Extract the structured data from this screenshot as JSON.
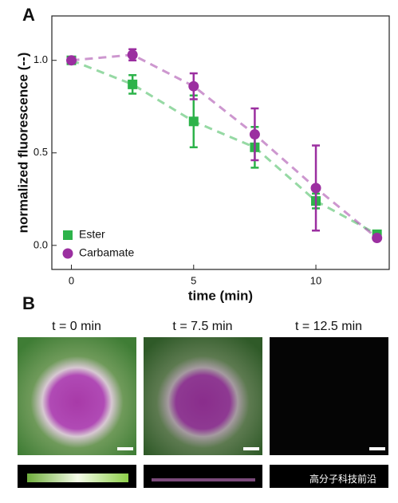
{
  "chart_data": {
    "type": "scatter",
    "panel_label": "A",
    "xlabel": "time (min)",
    "ylabel": "normalized fluorescence (--)",
    "x": [
      0,
      2.5,
      5,
      7.5,
      10,
      12.5
    ],
    "series": [
      {
        "name": "Ester",
        "color": "#2db34a",
        "marker": "square",
        "values": [
          1.0,
          0.87,
          0.67,
          0.53,
          0.24,
          0.06
        ],
        "errors": [
          0,
          0.05,
          0.14,
          0.11,
          0.04,
          0.01
        ]
      },
      {
        "name": "Carbamate",
        "color": "#9b2fa0",
        "marker": "circle",
        "values": [
          1.0,
          1.03,
          0.86,
          0.6,
          0.31,
          0.04
        ],
        "errors": [
          0,
          0.03,
          0.07,
          0.14,
          0.23,
          0.01
        ]
      }
    ],
    "xlim": [
      -0.8,
      13
    ],
    "ylim": [
      -0.13,
      1.24
    ],
    "xticks": [
      0,
      5,
      10
    ],
    "yticks": [
      {
        "value": 0,
        "label": "0.0"
      },
      {
        "value": 0.5,
        "label": "0.5"
      },
      {
        "value": 1,
        "label": "1.0"
      }
    ],
    "legend": "lower left"
  },
  "images": {
    "panel_label": "B",
    "captions": [
      "t = 0 min",
      "t = 7.5 min",
      "t = 12.5 min"
    ]
  },
  "watermark": "高分子科技前沿"
}
